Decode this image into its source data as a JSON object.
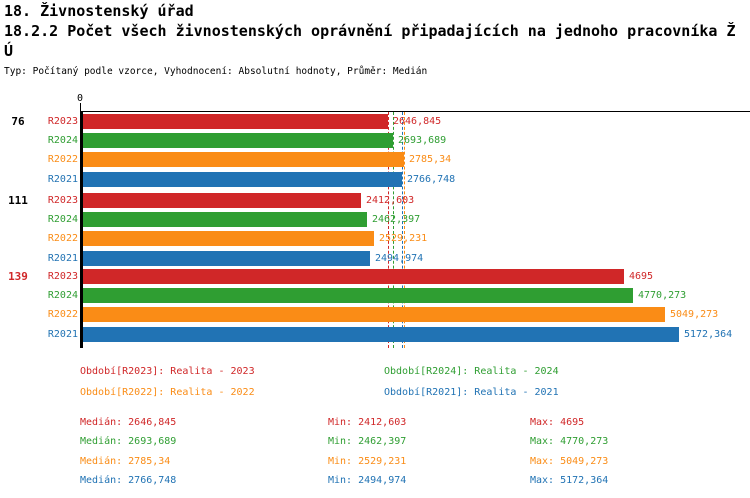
{
  "header": {
    "title_line1": "18. Živnostenský úřad",
    "title_line2": "18.2.2 Počet všech živnostenských oprávnění připadajících na jednoho pracovníka Ž",
    "title_line3": "Ú",
    "subtitle": "Typ: Počítaný podle vzorce, Vyhodnocení: Absolutní hodnoty, Průměr: Medián"
  },
  "colors": {
    "R2023": "#D02728",
    "R2024": "#2F9E32",
    "R2022": "#FA8C16",
    "R2021": "#2173B4",
    "axis": "#000000"
  },
  "chart_data": {
    "type": "bar",
    "orientation": "horizontal",
    "x_axis": {
      "zero_label": "0",
      "min": 0,
      "max_scale_value": 5172.364
    },
    "series_order": [
      "R2023",
      "R2024",
      "R2022",
      "R2021"
    ],
    "groups": [
      {
        "label": "76",
        "label_color": "#000000",
        "bars": [
          {
            "series": "R2023",
            "value": 2646.845,
            "display": "2646,845"
          },
          {
            "series": "R2024",
            "value": 2693.689,
            "display": "2693,689"
          },
          {
            "series": "R2022",
            "value": 2785.34,
            "display": "2785,34"
          },
          {
            "series": "R2021",
            "value": 2766.748,
            "display": "2766,748"
          }
        ]
      },
      {
        "label": "111",
        "label_color": "#000000",
        "bars": [
          {
            "series": "R2023",
            "value": 2412.603,
            "display": "2412,603"
          },
          {
            "series": "R2024",
            "value": 2462.397,
            "display": "2462,397"
          },
          {
            "series": "R2022",
            "value": 2529.231,
            "display": "2529,231"
          },
          {
            "series": "R2021",
            "value": 2494.974,
            "display": "2494,974"
          }
        ]
      },
      {
        "label": "139",
        "label_color": "#D02728",
        "bars": [
          {
            "series": "R2023",
            "value": 4695,
            "display": "4695"
          },
          {
            "series": "R2024",
            "value": 4770.273,
            "display": "4770,273"
          },
          {
            "series": "R2022",
            "value": 5049.273,
            "display": "5049,273"
          },
          {
            "series": "R2021",
            "value": 5172.364,
            "display": "5172,364"
          }
        ]
      }
    ],
    "median_markers": [
      {
        "series": "R2023",
        "value": 2646.845
      },
      {
        "series": "R2024",
        "value": 2693.689
      },
      {
        "series": "R2022",
        "value": 2785.34
      },
      {
        "series": "R2021",
        "value": 2766.748
      }
    ]
  },
  "legend": {
    "items": [
      {
        "series": "R2023",
        "text": "Období[R2023]: Realita - 2023"
      },
      {
        "series": "R2024",
        "text": "Období[R2024]: Realita - 2024"
      },
      {
        "series": "R2022",
        "text": "Období[R2022]: Realita - 2022"
      },
      {
        "series": "R2021",
        "text": "Období[R2021]: Realita - 2021"
      }
    ]
  },
  "stats": {
    "median_label": "Medián",
    "min_label": "Min",
    "max_label": "Max",
    "rows": [
      {
        "series": "R2023",
        "median": "2646,845",
        "min": "2412,603",
        "max": "4695"
      },
      {
        "series": "R2024",
        "median": "2693,689",
        "min": "2462,397",
        "max": "4770,273"
      },
      {
        "series": "R2022",
        "median": "2785,34",
        "min": "2529,231",
        "max": "5049,273"
      },
      {
        "series": "R2021",
        "median": "2766,748",
        "min": "2494,974",
        "max": "5172,364"
      }
    ]
  }
}
